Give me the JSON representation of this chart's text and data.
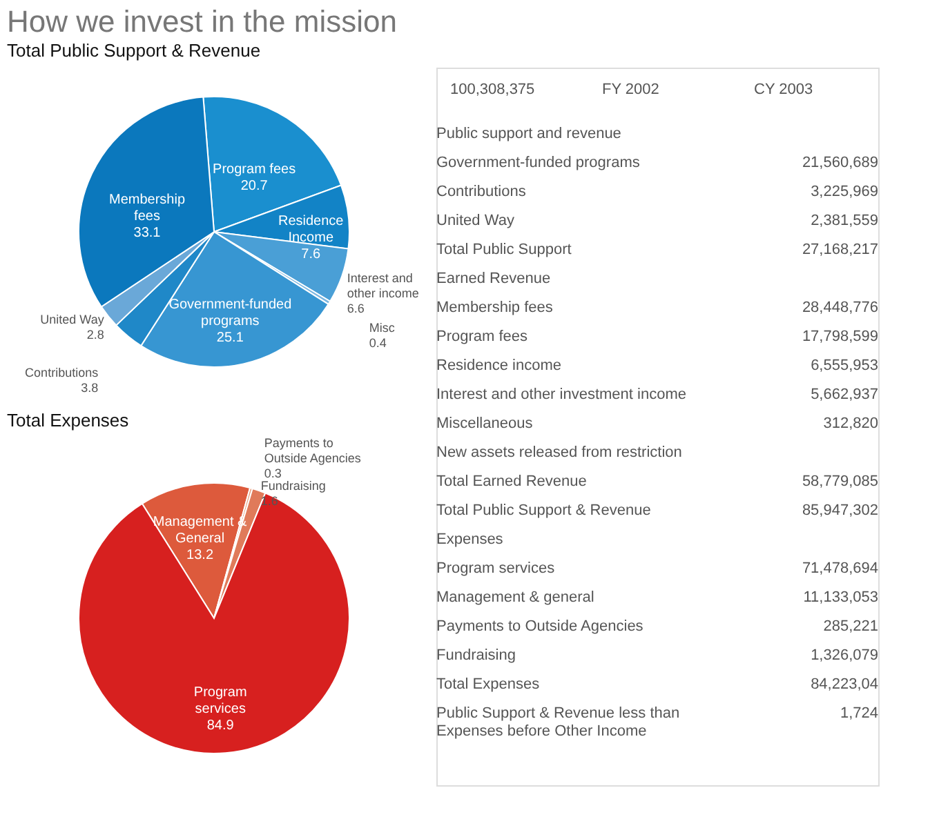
{
  "chart_data": [
    {
      "type": "pie",
      "title": "How we invest in the mission",
      "subtitle": "Total Public Support & Revenue",
      "data_labels": true,
      "categories": [
        "Program fees",
        "Residence Income",
        "Interest and other income",
        "Misc",
        "Government-funded programs",
        "Contributions",
        "United Way",
        "Membership fees"
      ],
      "values": [
        20.7,
        7.6,
        6.6,
        0.4,
        25.1,
        3.8,
        2.8,
        33.1
      ],
      "colors": [
        "#1a8fcf",
        "#1283c6",
        "#4a9fd6",
        "#7ab6e0",
        "#3796d2",
        "#1f88c8",
        "#6aa8d8",
        "#0b78bd"
      ]
    },
    {
      "type": "pie",
      "title": "Total Expenses",
      "data_labels": true,
      "categories": [
        "Management & General",
        "Payments to Outside Agencies",
        "Fundraising",
        "Program services"
      ],
      "values": [
        13.2,
        0.3,
        1.6,
        84.9
      ],
      "colors": [
        "#dd5a3c",
        "#e8a080",
        "#e07a5a",
        "#d7201f"
      ]
    },
    {
      "type": "other",
      "annotations": [
        "100,308,375",
        "FY 2002",
        "CY 2003"
      ],
      "categories": [
        "Public support and revenue",
        "Government-funded programs",
        "Contributions",
        "United Way",
        "Total Public Support",
        "Earned Revenue",
        "Membership fees",
        "Program fees",
        "Residence income",
        "Interest and other investment income",
        "Miscellaneous",
        "New assets released from restriction",
        "Total Earned Revenue",
        "Total Public Support & Revenue",
        "Expenses",
        "Program services",
        "Management & general",
        "Payments to Outside Agencies",
        "Fundraising",
        "Total Expenses",
        "Public Support & Revenue less than Expenses before Other Income"
      ],
      "value_labels": [
        null,
        "21,560,689",
        "3,225,969",
        "2,381,559",
        "27,168,217",
        null,
        "28,448,776",
        "17,798,599",
        "6,555,953",
        "5,662,937",
        "312,820",
        null,
        "58,779,085",
        "85,947,302",
        null,
        "71,478,694",
        "11,133,053",
        "285,221",
        "1,326,079",
        "84,223,04",
        "1,724"
      ]
    }
  ]
}
